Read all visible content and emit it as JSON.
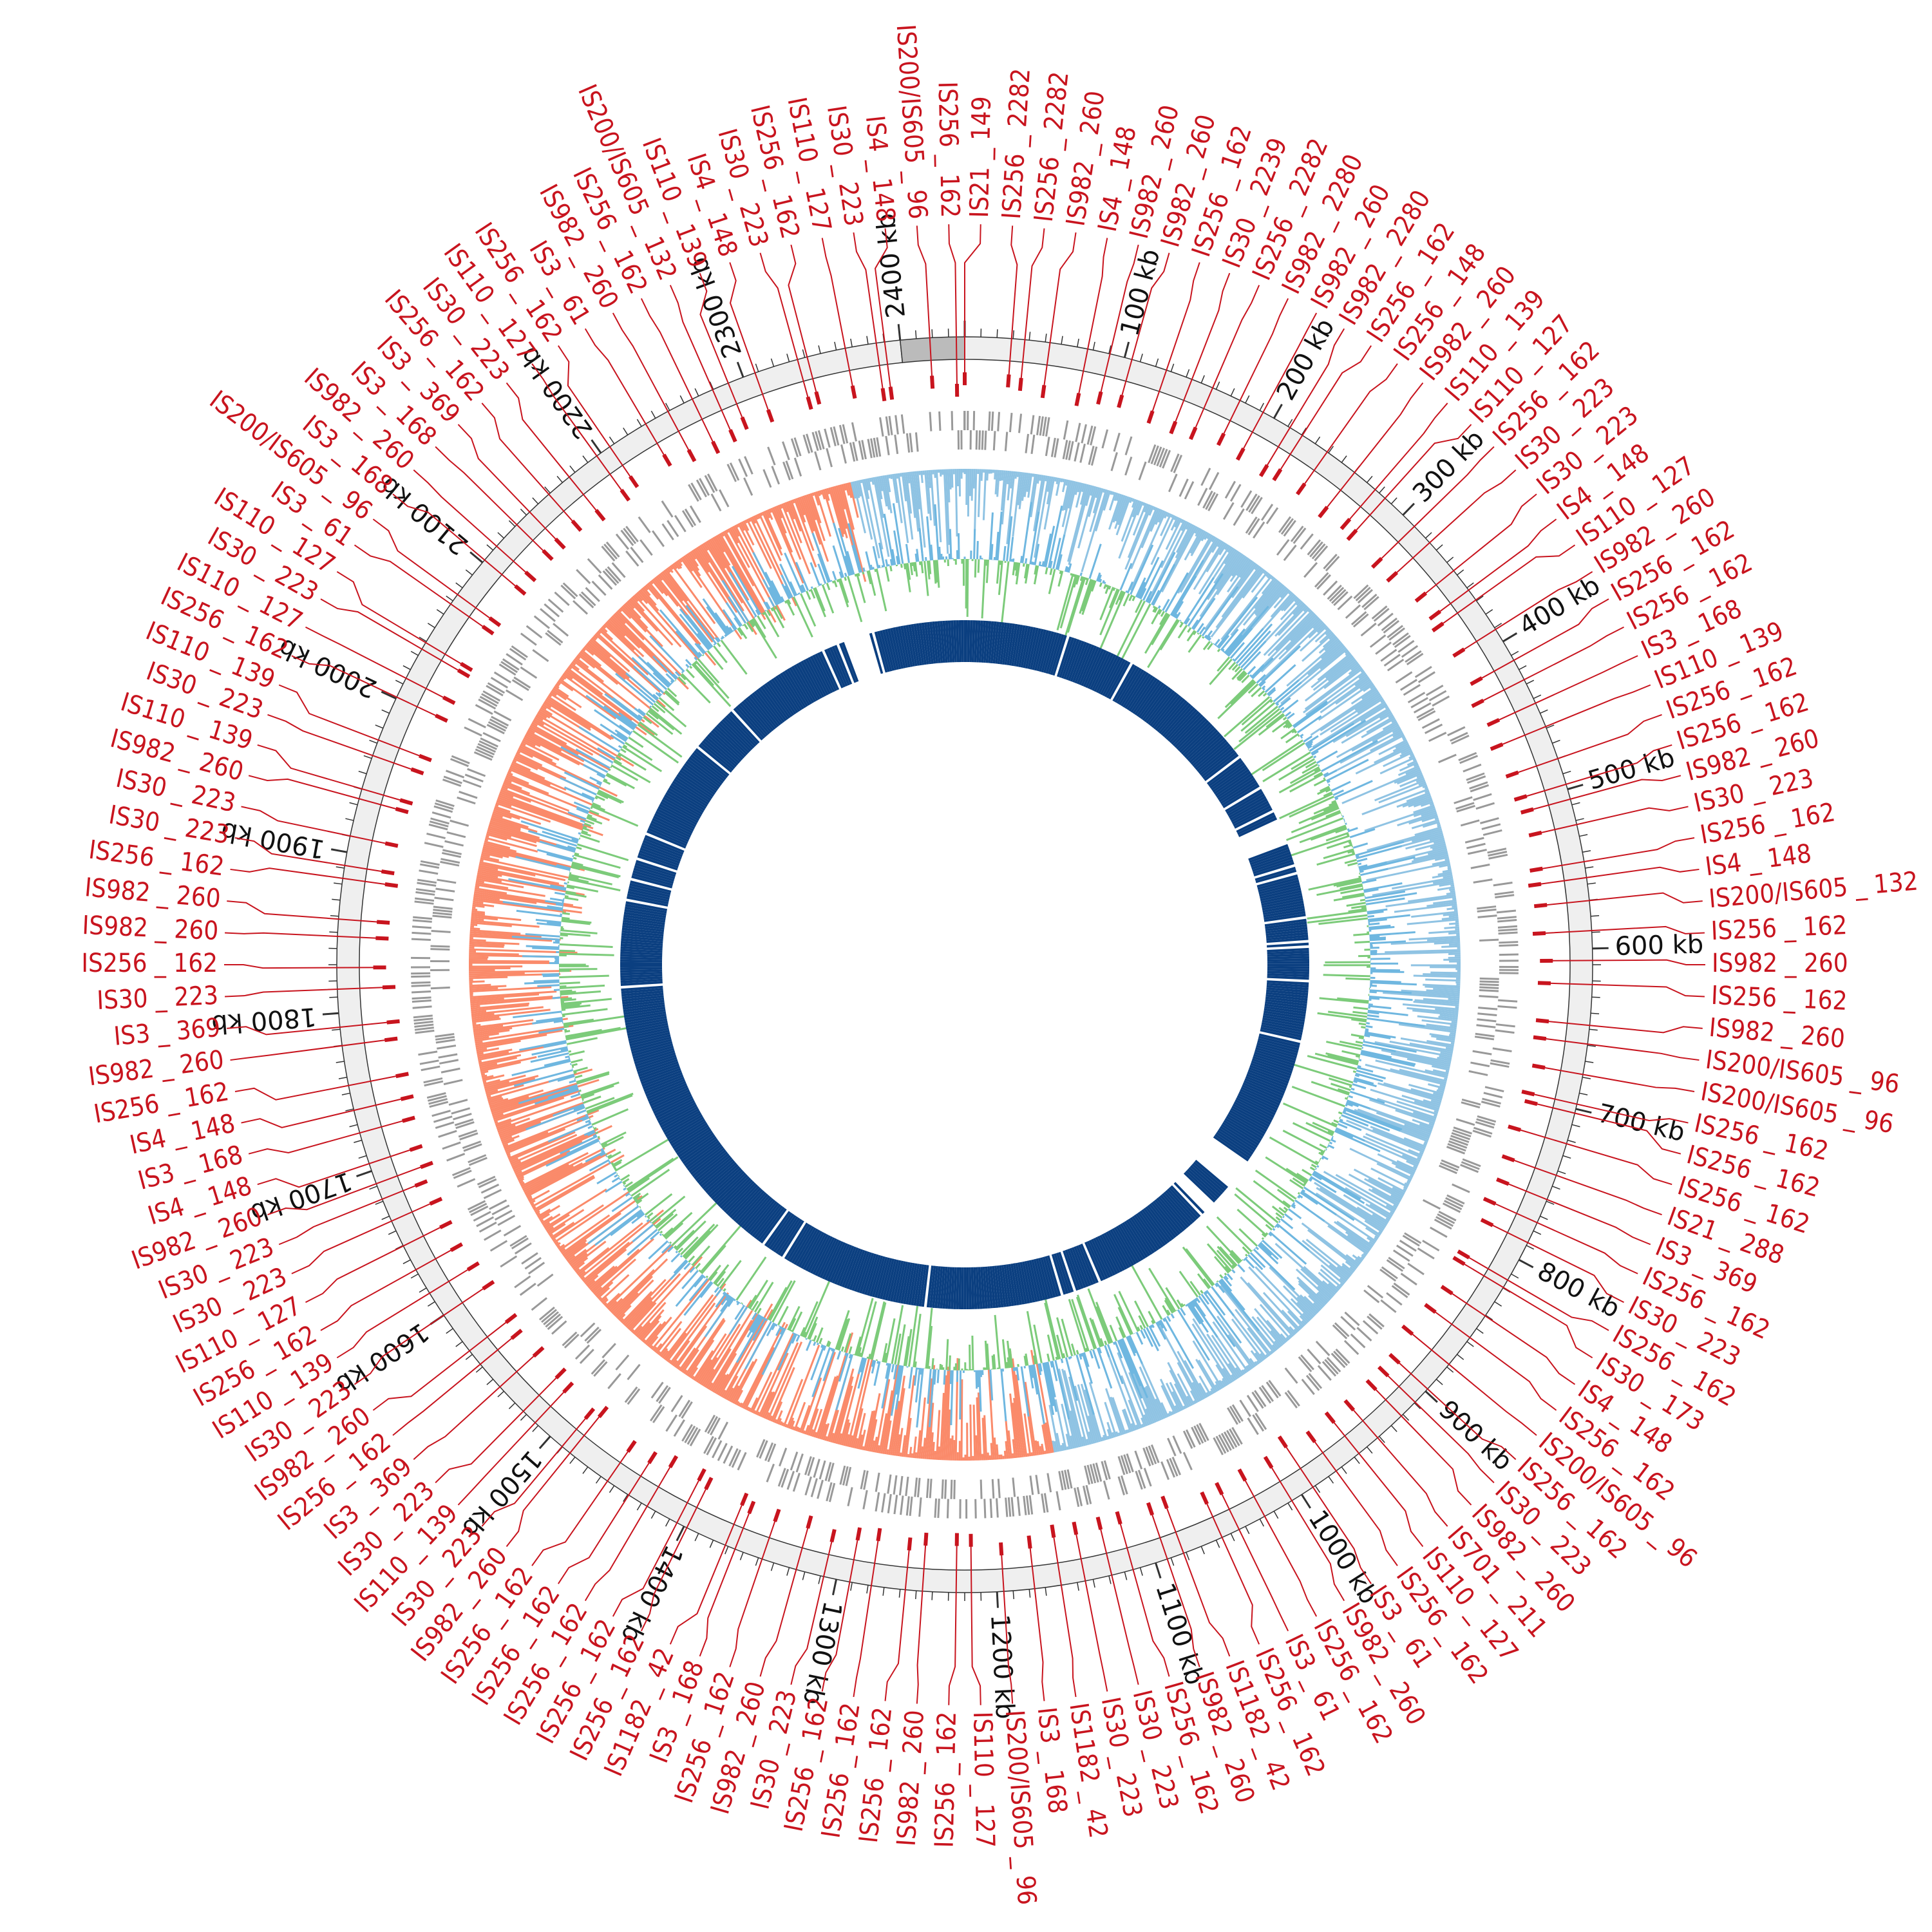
{
  "chart_data": {
    "type": "circular-genome-map",
    "genome_length_kb": 2440,
    "highlight_region_kb": [
      2400,
      2440
    ],
    "tick_labels": [
      "100 kb",
      "200 kb",
      "300 kb",
      "400 kb",
      "500 kb",
      "600 kb",
      "700 kb",
      "800 kb",
      "900 kb",
      "1000 kb",
      "1100 kb",
      "1200 kb",
      "1300 kb",
      "1400 kb",
      "1500 kb",
      "1600 kb",
      "1700 kb",
      "1800 kb",
      "1900 kb",
      "2000 kb",
      "2100 kb",
      "2200 kb",
      "2300 kb",
      "2400 kb"
    ],
    "tick_values_kb": [
      100,
      200,
      300,
      400,
      500,
      600,
      700,
      800,
      900,
      1000,
      1100,
      1200,
      1300,
      1400,
      1500,
      1600,
      1700,
      1800,
      1900,
      2000,
      2100,
      2200,
      2300,
      2400
    ],
    "tracks": [
      "IS element positions",
      "genes",
      "GC skew",
      "GC content",
      "blocks"
    ],
    "is_labels": [
      "IS21_149",
      "IS256_2282",
      "IS256_2282",
      "IS982_260",
      "IS4_148",
      "IS982_260",
      "IS982_260",
      "IS256_162",
      "IS30_2239",
      "IS256_2282",
      "IS982_2280",
      "IS982_260",
      "IS982_2280",
      "IS256_162",
      "IS256_148",
      "IS982_260",
      "IS110_139",
      "IS110_127",
      "IS256_162",
      "IS30_223",
      "IS30_223",
      "IS4_148",
      "IS110_127",
      "IS982_260",
      "IS256_162",
      "IS256_162",
      "IS3_168",
      "IS110_139",
      "IS256_162",
      "IS256_162",
      "IS982_260",
      "IS30_223",
      "IS256_162",
      "IS4_148",
      "IS200/IS605_132",
      "IS256_162",
      "IS982_260",
      "IS256_162",
      "IS982_260",
      "IS200/IS605_96",
      "IS200/IS605_96",
      "IS256_162",
      "IS256_162",
      "IS256_162",
      "IS21_288",
      "IS3_369",
      "IS256_162",
      "IS30_223",
      "IS256_162",
      "IS30_173",
      "IS4_148",
      "IS256_162",
      "IS200/IS605_96",
      "IS256_162",
      "IS30_223",
      "IS982_260",
      "IS701_211",
      "IS110_127",
      "IS256_162",
      "IS3_61",
      "IS982_260",
      "IS256_162",
      "IS3_61",
      "IS256_162",
      "IS1182_42",
      "IS982_260",
      "IS256_162",
      "IS30_223",
      "IS30_223",
      "IS1182_42",
      "IS3_168",
      "IS200/IS605_96",
      "IS110_127",
      "IS256_162",
      "IS982_260",
      "IS256_162",
      "IS256_162",
      "IS256_162",
      "IS30_223",
      "IS982_260",
      "IS256_162",
      "IS3_168",
      "IS1182_42",
      "IS256_162",
      "IS256_162",
      "IS256_162",
      "IS256_162",
      "IS256_162",
      "IS982_260",
      "IS30_223",
      "IS110_139",
      "IS30_223",
      "IS3_369",
      "IS256_162",
      "IS982_260",
      "IS30_223",
      "IS110_139",
      "IS256_162",
      "IS110_127",
      "IS30_223",
      "IS30_223",
      "IS982_260",
      "IS4_148",
      "IS3_168",
      "IS4_148",
      "IS256_162",
      "IS982_260",
      "IS3_369",
      "IS30_223",
      "IS256_162",
      "IS982_260",
      "IS982_260",
      "IS256_162",
      "IS30_223",
      "IS30_223",
      "IS982_260",
      "IS110_139",
      "IS30_223",
      "IS110_139",
      "IS256_162",
      "IS110_127",
      "IS30_223",
      "IS110_127",
      "IS3_61",
      "IS200/IS605_96",
      "IS3_168",
      "IS982_260",
      "IS3_168",
      "IS3_369",
      "IS256_162",
      "IS30_223",
      "IS110_127",
      "IS256_162",
      "IS3_61",
      "IS982_260",
      "IS256_162",
      "IS200/IS605_132",
      "IS110_139",
      "IS4_148",
      "IS30_223",
      "IS256_162",
      "IS110_127",
      "IS30_223",
      "IS4_148",
      "IS200/IS605_96",
      "IS256_162"
    ],
    "colors": {
      "is": "#c8141e",
      "genes": "#999999",
      "skew_pos": "#8fc3e3",
      "skew_neg": "#fa8a6a",
      "gc_pos": "#6fb7e0",
      "gc_neg": "#7ccb7a",
      "blocks": "#0b3f80",
      "ideogram": "#efefef",
      "highlight": "#bbbbbb"
    }
  }
}
